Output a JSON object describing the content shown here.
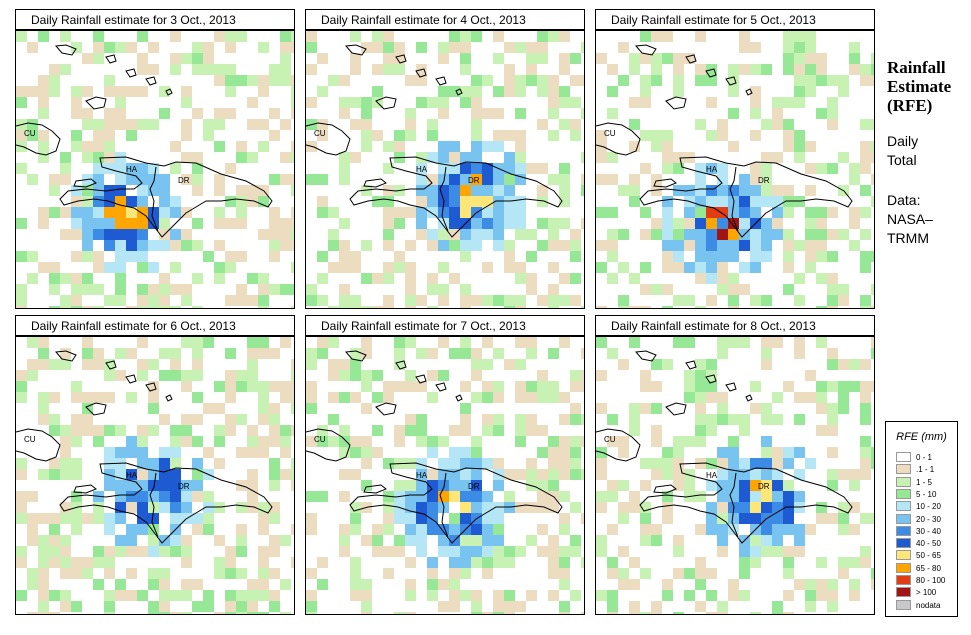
{
  "panels": [
    {
      "title": "Daily Rainfall estimate for  3 Oct., 2013",
      "seed": 3,
      "day": 0
    },
    {
      "title": "Daily Rainfall estimate for  4 Oct., 2013",
      "seed": 4,
      "day": 1
    },
    {
      "title": "Daily Rainfall estimate for  5 Oct., 2013",
      "seed": 5,
      "day": 2
    },
    {
      "title": "Daily Rainfall estimate for  6 Oct., 2013",
      "seed": 6,
      "day": 3
    },
    {
      "title": "Daily Rainfall estimate for  7 Oct., 2013",
      "seed": 7,
      "day": 4
    },
    {
      "title": "Daily Rainfall estimate for  8 Oct., 2013",
      "seed": 8,
      "day": 5
    }
  ],
  "map_labels": {
    "cu": "CU",
    "ha": "HA",
    "dr": "DR"
  },
  "side": {
    "title_line1": "Rainfall",
    "title_line2": "Estimate",
    "title_line3": "(RFE)",
    "daily_line1": "Daily",
    "daily_line2": "Total",
    "data_line1": "Data:",
    "data_line2": "NASA–",
    "data_line3": "TRMM"
  },
  "legend": {
    "title": "RFE (mm)",
    "items": [
      {
        "label": "0 - 1",
        "color": "#ffffff"
      },
      {
        "label": ".1 - 1",
        "color": "#ecdcc0"
      },
      {
        "label": "1 - 5",
        "color": "#c8f2b4"
      },
      {
        "label": "5 - 10",
        "color": "#96e896"
      },
      {
        "label": "10 - 20",
        "color": "#b4e6f5"
      },
      {
        "label": "20 - 30",
        "color": "#78c3f0"
      },
      {
        "label": "30 - 40",
        "color": "#3c8ce6"
      },
      {
        "label": "40 - 50",
        "color": "#1e5ad2"
      },
      {
        "label": "50 - 65",
        "color": "#ffe678"
      },
      {
        "label": "65 - 80",
        "color": "#ffa500"
      },
      {
        "label": "80 - 100",
        "color": "#e13c14"
      },
      {
        "label": "> 100",
        "color": "#a01414"
      },
      {
        "label": "nodata",
        "color": "#c8c8c8"
      }
    ]
  }
}
